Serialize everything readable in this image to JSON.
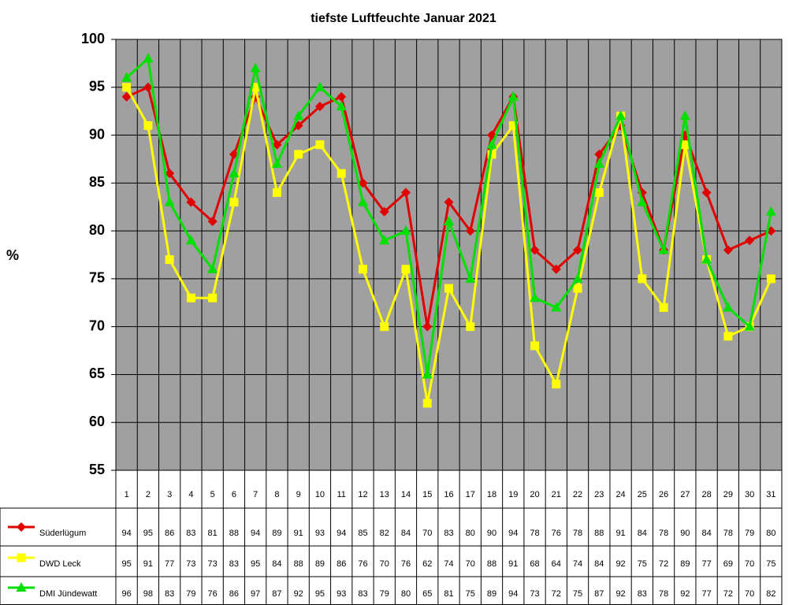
{
  "chart_data": {
    "type": "line",
    "title": "tiefste Luftfeuchte Januar 2021",
    "y_label": "%",
    "categories": [
      "1",
      "2",
      "3",
      "4",
      "5",
      "6",
      "7",
      "8",
      "9",
      "10",
      "11",
      "12",
      "13",
      "14",
      "15",
      "16",
      "17",
      "18",
      "19",
      "20",
      "21",
      "22",
      "23",
      "24",
      "25",
      "26",
      "27",
      "28",
      "29",
      "30",
      "31"
    ],
    "series": [
      {
        "name": "Süderlügum",
        "color": "#e00000",
        "marker": "diamond",
        "values": [
          94,
          95,
          86,
          83,
          81,
          88,
          94,
          89,
          91,
          93,
          94,
          85,
          82,
          84,
          70,
          83,
          80,
          90,
          94,
          78,
          76,
          78,
          88,
          91,
          84,
          78,
          90,
          84,
          78,
          79,
          80
        ]
      },
      {
        "name": "DWD Leck",
        "color": "#ffff00",
        "marker": "square",
        "values": [
          95,
          91,
          77,
          73,
          73,
          83,
          95,
          84,
          88,
          89,
          86,
          76,
          70,
          76,
          62,
          74,
          70,
          88,
          91,
          68,
          64,
          74,
          84,
          92,
          75,
          72,
          89,
          77,
          69,
          70,
          75
        ]
      },
      {
        "name": "DMI Jündewatt",
        "color": "#00e000",
        "marker": "triangle",
        "values": [
          96,
          98,
          83,
          79,
          76,
          86,
          97,
          87,
          92,
          95,
          93,
          83,
          79,
          80,
          65,
          81,
          75,
          89,
          94,
          73,
          72,
          75,
          87,
          92,
          83,
          78,
          92,
          77,
          72,
          70,
          82
        ]
      }
    ],
    "ylim": [
      55,
      100
    ],
    "yticks": [
      55,
      60,
      65,
      70,
      75,
      80,
      85,
      90,
      95,
      100
    ],
    "grid": true,
    "plot_background": "#a0a0a0",
    "data_table": true
  }
}
